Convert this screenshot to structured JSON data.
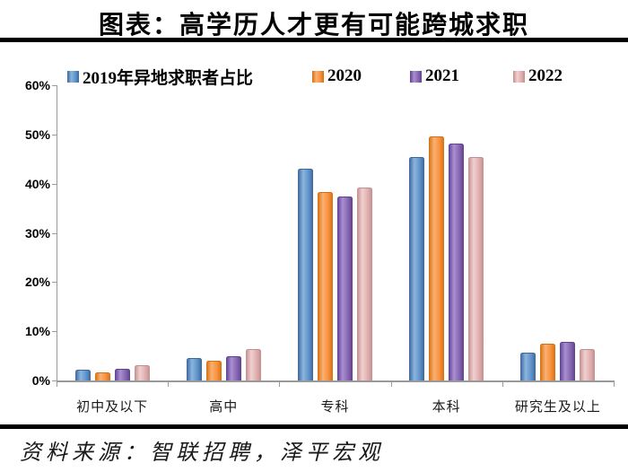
{
  "title": "图表：高学历人才更有可能跨城求职",
  "source": "资料来源：智联招聘，泽平宏观",
  "chart_data": {
    "type": "bar",
    "title": "图表：高学历人才更有可能跨城求职",
    "categories": [
      "初中及以下",
      "高中",
      "专科",
      "本科",
      "研究生及以上"
    ],
    "series": [
      {
        "name": "2019年异地求职者占比",
        "values": [
          2.0,
          4.3,
          42.8,
          45.2,
          5.5
        ],
        "color_main": "#5d92c8",
        "color_light": "#8cb4de",
        "color_edge": "#3a679e"
      },
      {
        "name": "2020",
        "values": [
          1.5,
          3.8,
          38.2,
          49.4,
          7.3
        ],
        "color_main": "#f78f3c",
        "color_light": "#fbb071",
        "color_edge": "#d4700f"
      },
      {
        "name": "2021",
        "values": [
          2.2,
          4.7,
          37.2,
          48.0,
          7.7
        ],
        "color_main": "#8465ae",
        "color_light": "#a98fd2",
        "color_edge": "#5e4092"
      },
      {
        "name": "2022",
        "values": [
          3.0,
          6.3,
          39.0,
          45.2,
          6.2
        ],
        "color_main": "#dfadad",
        "color_light": "#f0d0d0",
        "color_edge": "#c38e8e"
      }
    ],
    "ylabel_ticks": [
      "60%",
      "50%",
      "40%",
      "30%",
      "20%",
      "10%",
      "0%"
    ],
    "ylim": [
      0,
      60
    ],
    "ytick_step": 10,
    "grid": false,
    "legend_position": "top",
    "xlabel": "",
    "ylabel": ""
  }
}
